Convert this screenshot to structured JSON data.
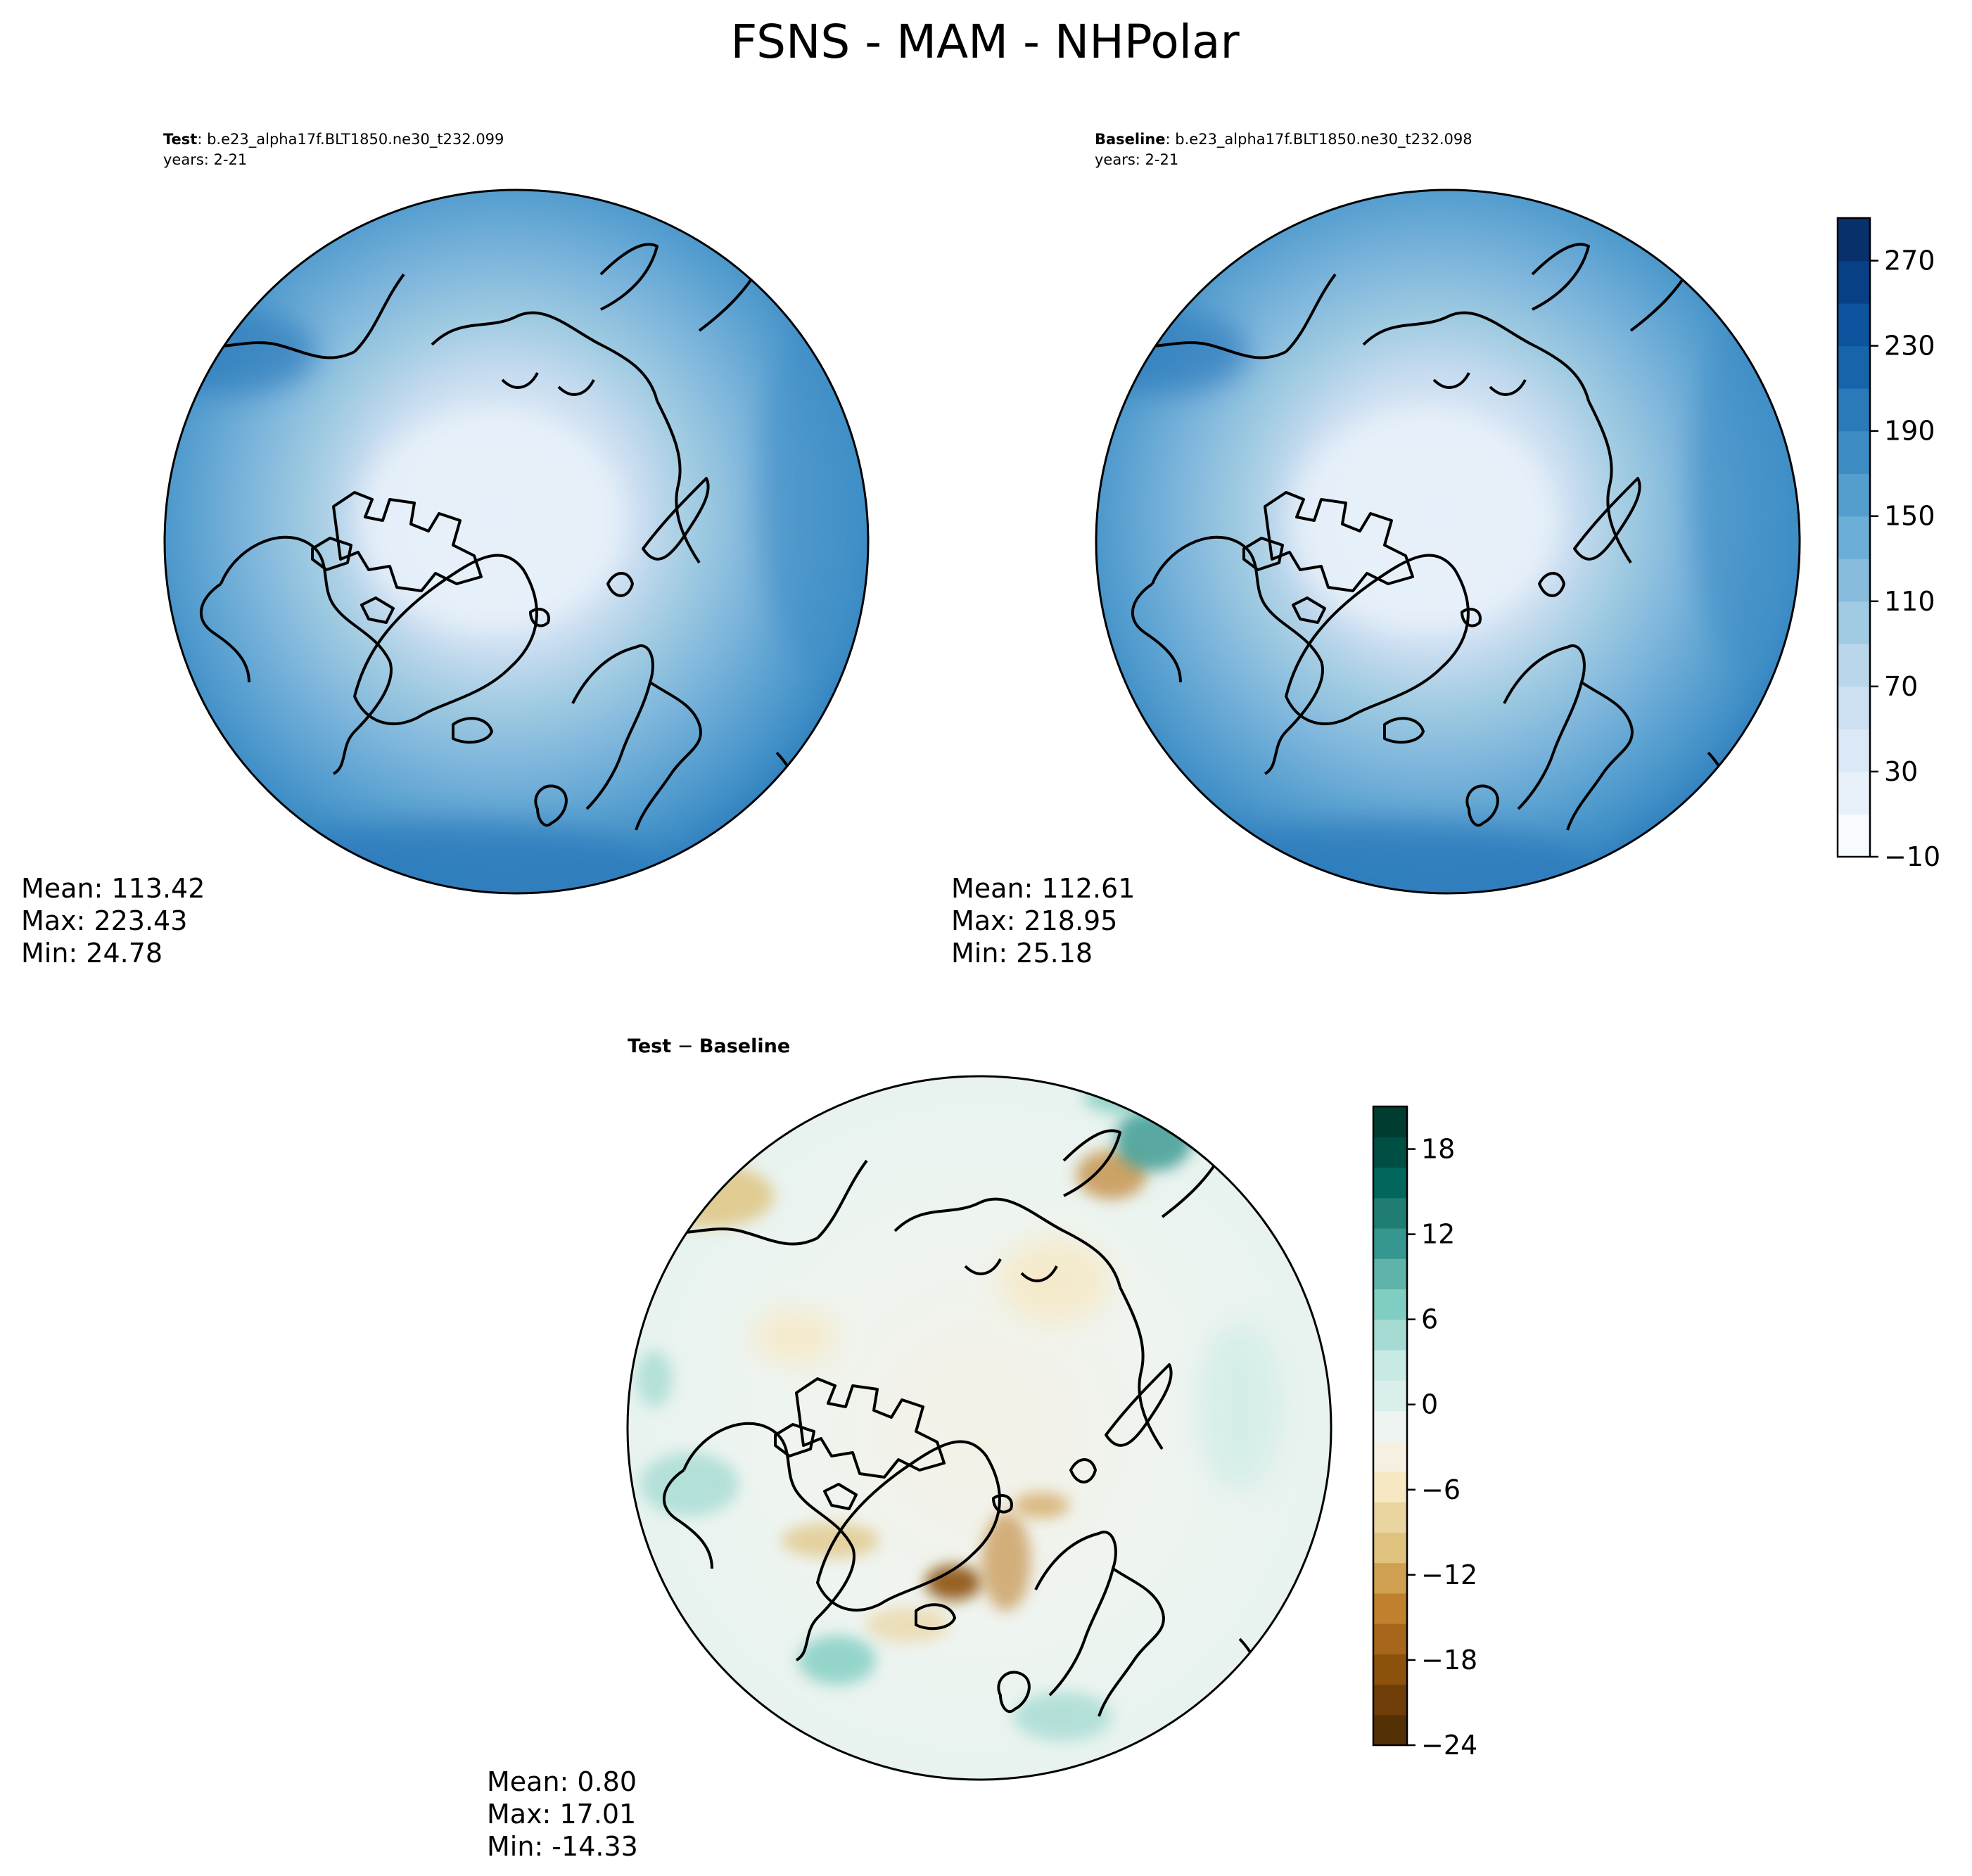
{
  "title": "FSNS - MAM - NHPolar",
  "panels": [
    {
      "id": "test",
      "header_bold": "Test",
      "header_sep": ": ",
      "header_text": "b.e23_alpha17f.BLT1850.ne30_t232.099",
      "years": "years: 2-21",
      "stats": {
        "mean": "Mean: 113.42",
        "max": "Max: 223.43",
        "min": "Min: 24.78"
      }
    },
    {
      "id": "baseline",
      "header_bold": "Baseline",
      "header_sep": ": ",
      "header_text": "b.e23_alpha17f.BLT1850.ne30_t232.098",
      "years": "years: 2-21",
      "stats": {
        "mean": "Mean: 112.61",
        "max": "Max: 218.95",
        "min": "Min: 25.18"
      }
    },
    {
      "id": "diff",
      "header_bold": "Test",
      "header_sep": " − ",
      "header_bold2": "Baseline",
      "stats": {
        "mean": "Mean:  0.80",
        "max": "Max: 17.01",
        "min": "Min: -14.33"
      }
    }
  ],
  "colorbars": {
    "main": {
      "colormap": "Blues",
      "range": [
        -10,
        290
      ],
      "step": 20,
      "ticks": [
        -10,
        30,
        70,
        110,
        150,
        190,
        230,
        270
      ],
      "tick_labels": [
        "−10",
        "30",
        "70",
        "110",
        "150",
        "190",
        "230",
        "270"
      ],
      "colors": [
        "#f7fbff",
        "#e8f1fa",
        "#dbe9f6",
        "#cde0f1",
        "#bad6eb",
        "#a0cbe2",
        "#87bcdd",
        "#6baed6",
        "#539ecd",
        "#3d8dc4",
        "#2a7aba",
        "#1764ab",
        "#0d539e",
        "#084086",
        "#08306b"
      ]
    },
    "diff": {
      "colormap": "BrBG",
      "range": [
        -24,
        21
      ],
      "ticks": [
        -24,
        -18,
        -12,
        -6,
        0,
        6,
        12,
        18
      ],
      "tick_labels": [
        "−24",
        "−18",
        "−12",
        "−6",
        "0",
        "6",
        "12",
        "18"
      ],
      "colors": [
        "#543005",
        "#6f3d08",
        "#8c510a",
        "#a6661b",
        "#bf812d",
        "#cfa052",
        "#dfc27d",
        "#ead4a0",
        "#f6e8c3",
        "#f5f0e1",
        "#eef4f2",
        "#d8efec",
        "#c7eae5",
        "#a6dbd3",
        "#80cdc1",
        "#5fb3a8",
        "#35978f",
        "#1f7d74",
        "#01665e",
        "#004f45",
        "#003c30"
      ]
    }
  },
  "chart_data": {
    "type": "heatmap",
    "projection": "north polar stereographic",
    "title": "FSNS - MAM - NHPolar",
    "panels": [
      {
        "name": "Test",
        "case": "b.e23_alpha17f.BLT1850.ne30_t232.099",
        "years": "2-21",
        "mean": 113.42,
        "max": 223.43,
        "min": 24.78,
        "color_range": [
          -10,
          290
        ]
      },
      {
        "name": "Baseline",
        "case": "b.e23_alpha17f.BLT1850.ne30_t232.098",
        "years": "2-21",
        "mean": 112.61,
        "max": 218.95,
        "min": 25.18,
        "color_range": [
          -10,
          290
        ]
      },
      {
        "name": "Test − Baseline",
        "mean": 0.8,
        "max": 17.01,
        "min": -14.33,
        "color_range": [
          -24,
          21
        ]
      }
    ]
  }
}
